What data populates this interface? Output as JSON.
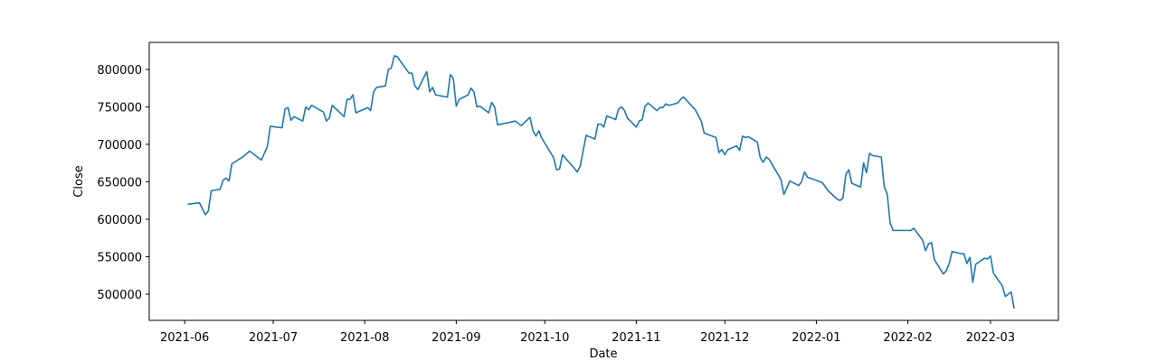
{
  "chart_data": {
    "type": "line",
    "x_label": "Date",
    "y_label": "Close",
    "x": [
      "2021-06-02",
      "2021-06-06",
      "2021-06-08",
      "2021-06-09",
      "2021-06-10",
      "2021-06-13",
      "2021-06-14",
      "2021-06-15",
      "2021-06-16",
      "2021-06-17",
      "2021-06-21",
      "2021-06-23",
      "2021-06-27",
      "2021-06-29",
      "2021-06-30",
      "2021-07-04",
      "2021-07-05",
      "2021-07-06",
      "2021-07-07",
      "2021-07-08",
      "2021-07-11",
      "2021-07-12",
      "2021-07-13",
      "2021-07-14",
      "2021-07-18",
      "2021-07-19",
      "2021-07-20",
      "2021-07-21",
      "2021-07-25",
      "2021-07-26",
      "2021-07-27",
      "2021-07-28",
      "2021-07-29",
      "2021-08-02",
      "2021-08-03",
      "2021-08-04",
      "2021-08-05",
      "2021-08-08",
      "2021-08-09",
      "2021-08-10",
      "2021-08-11",
      "2021-08-12",
      "2021-08-16",
      "2021-08-17",
      "2021-08-18",
      "2021-08-19",
      "2021-08-22",
      "2021-08-23",
      "2021-08-24",
      "2021-08-25",
      "2021-08-29",
      "2021-08-30",
      "2021-08-31",
      "2021-09-01",
      "2021-09-02",
      "2021-09-05",
      "2021-09-06",
      "2021-09-07",
      "2021-09-08",
      "2021-09-09",
      "2021-09-12",
      "2021-09-13",
      "2021-09-14",
      "2021-09-15",
      "2021-09-21",
      "2021-09-23",
      "2021-09-26",
      "2021-09-27",
      "2021-09-28",
      "2021-09-29",
      "2021-09-30",
      "2021-10-04",
      "2021-10-05",
      "2021-10-06",
      "2021-10-07",
      "2021-10-11",
      "2021-10-12",
      "2021-10-13",
      "2021-10-15",
      "2021-10-18",
      "2021-10-19",
      "2021-10-20",
      "2021-10-21",
      "2021-10-22",
      "2021-10-25",
      "2021-10-26",
      "2021-10-27",
      "2021-10-28",
      "2021-10-29",
      "2021-11-01",
      "2021-11-02",
      "2021-11-03",
      "2021-11-04",
      "2021-11-05",
      "2021-11-08",
      "2021-11-09",
      "2021-11-10",
      "2021-11-11",
      "2021-11-12",
      "2021-11-15",
      "2021-11-16",
      "2021-11-17",
      "2021-11-21",
      "2021-11-23",
      "2021-11-24",
      "2021-11-28",
      "2021-11-29",
      "2021-11-30",
      "2021-12-01",
      "2021-12-02",
      "2021-12-05",
      "2021-12-06",
      "2021-12-07",
      "2021-12-08",
      "2021-12-09",
      "2021-12-12",
      "2021-12-13",
      "2021-12-14",
      "2021-12-15",
      "2021-12-16",
      "2021-12-20",
      "2021-12-21",
      "2021-12-23",
      "2021-12-26",
      "2021-12-27",
      "2021-12-28",
      "2021-12-29",
      "2022-01-03",
      "2022-01-05",
      "2022-01-08",
      "2022-01-09",
      "2022-01-10",
      "2022-01-11",
      "2022-01-12",
      "2022-01-13",
      "2022-01-16",
      "2022-01-17",
      "2022-01-18",
      "2022-01-19",
      "2022-01-20",
      "2022-01-23",
      "2022-01-24",
      "2022-01-25",
      "2022-01-26",
      "2022-01-27",
      "2022-02-02",
      "2022-02-03",
      "2022-02-06",
      "2022-02-07",
      "2022-02-08",
      "2022-02-09",
      "2022-02-10",
      "2022-02-13",
      "2022-02-14",
      "2022-02-15",
      "2022-02-16",
      "2022-02-19",
      "2022-02-20",
      "2022-02-21",
      "2022-02-22",
      "2022-02-23",
      "2022-02-24",
      "2022-02-27",
      "2022-02-28",
      "2022-03-01",
      "2022-03-02",
      "2022-03-05",
      "2022-03-06",
      "2022-03-08",
      "2022-03-09"
    ],
    "series": [
      {
        "name": "Close",
        "color": "#1f77b4",
        "values": [
          620000,
          622000,
          606000,
          611000,
          638000,
          640000,
          652000,
          655000,
          651000,
          674000,
          684000,
          691000,
          679000,
          697000,
          724000,
          722000,
          747000,
          749000,
          732000,
          737000,
          731000,
          750000,
          746000,
          752000,
          743000,
          731000,
          735000,
          752000,
          737000,
          760000,
          760000,
          766000,
          742000,
          749000,
          745000,
          770000,
          776000,
          778000,
          800000,
          802000,
          818000,
          817000,
          795000,
          795000,
          778000,
          773000,
          797000,
          770000,
          776000,
          766000,
          763000,
          793000,
          788000,
          751000,
          760000,
          766000,
          775000,
          770000,
          750000,
          751000,
          742000,
          756000,
          750000,
          726000,
          731000,
          725000,
          736000,
          718000,
          711000,
          718000,
          708000,
          682000,
          666000,
          667000,
          686000,
          668000,
          663000,
          671000,
          712000,
          707000,
          727000,
          727000,
          723000,
          738000,
          733000,
          747000,
          750000,
          745000,
          735000,
          723000,
          731000,
          733000,
          751000,
          755000,
          745000,
          749000,
          749000,
          754000,
          752000,
          755000,
          760000,
          763000,
          746000,
          731000,
          715000,
          709000,
          689000,
          693000,
          686000,
          693000,
          698000,
          692000,
          711000,
          709000,
          710000,
          703000,
          682000,
          676000,
          683000,
          680000,
          653000,
          633000,
          651000,
          645000,
          650000,
          663000,
          656000,
          649000,
          638000,
          627000,
          625000,
          628000,
          660000,
          666000,
          648000,
          643000,
          675000,
          662000,
          688000,
          685000,
          683000,
          643000,
          634000,
          595000,
          585000,
          585000,
          588000,
          572000,
          558000,
          567000,
          569000,
          546000,
          527000,
          531000,
          541000,
          557000,
          554000,
          554000,
          541000,
          549000,
          516000,
          540000,
          548000,
          547000,
          551000,
          528000,
          511000,
          497000,
          503000,
          481000
        ]
      }
    ],
    "xlim": [
      "2021-05-20",
      "2022-03-24"
    ],
    "xticks": [
      {
        "value": "2021-06-01",
        "label": "2021-06"
      },
      {
        "value": "2021-07-01",
        "label": "2021-07"
      },
      {
        "value": "2021-08-01",
        "label": "2021-08"
      },
      {
        "value": "2021-09-01",
        "label": "2021-09"
      },
      {
        "value": "2021-10-01",
        "label": "2021-10"
      },
      {
        "value": "2021-11-01",
        "label": "2021-11"
      },
      {
        "value": "2021-12-01",
        "label": "2021-12"
      },
      {
        "value": "2022-01-01",
        "label": "2022-01"
      },
      {
        "value": "2022-02-01",
        "label": "2022-02"
      },
      {
        "value": "2022-03-01",
        "label": "2022-03"
      }
    ],
    "ylim": [
      465000,
      836000
    ],
    "yticks": [
      500000,
      550000,
      600000,
      650000,
      700000,
      750000,
      800000
    ],
    "grid": false
  }
}
